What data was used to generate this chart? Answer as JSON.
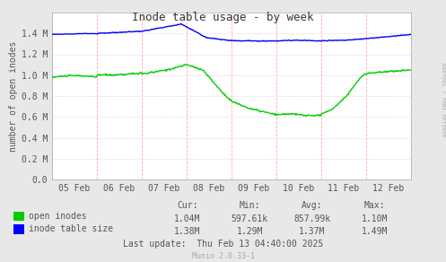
{
  "title": "Inode table usage - by week",
  "ylabel": "number of open inodes",
  "background_color": "#e8e8e8",
  "plot_bg_color": "#ffffff",
  "open_inodes_color": "#00cc00",
  "inode_table_color": "#0000ff",
  "legend_labels": [
    "open inodes",
    "inode table size"
  ],
  "ytick_labels": [
    "0.0",
    "0.2 M",
    "0.4 M",
    "0.6 M",
    "0.8 M",
    "1.0 M",
    "1.2 M",
    "1.4 M"
  ],
  "ytick_vals": [
    0,
    200000,
    400000,
    600000,
    800000,
    1000000,
    1200000,
    1400000
  ],
  "ylim": [
    0,
    1600000
  ],
  "xtick_labels": [
    "05 Feb",
    "06 Feb",
    "07 Feb",
    "08 Feb",
    "09 Feb",
    "10 Feb",
    "11 Feb",
    "12 Feb"
  ],
  "stats_headers": [
    "Cur:",
    "Min:",
    "Avg:",
    "Max:"
  ],
  "stats_open": [
    "1.04M",
    "597.61k",
    "857.99k",
    "1.10M"
  ],
  "stats_table": [
    "1.38M",
    "1.29M",
    "1.37M",
    "1.49M"
  ],
  "last_update": "Last update:  Thu Feb 13 04:40:00 2025",
  "munin_version": "Munin 2.0.33-1",
  "rrdtool_label": "RRDTOOL / TOBI OETIKER",
  "text_color": "#555555",
  "title_color": "#333333"
}
